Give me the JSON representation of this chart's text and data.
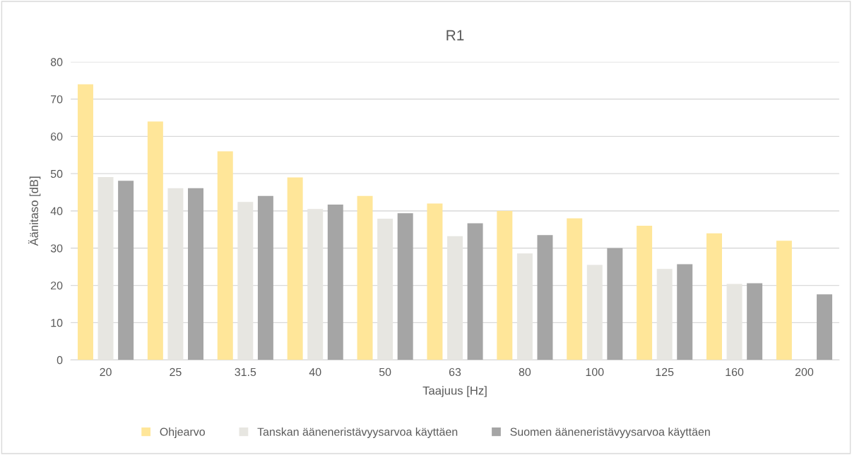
{
  "chart_data": {
    "type": "bar",
    "title": "R1",
    "xlabel": "Taajuus [Hz]",
    "ylabel": "Äänitaso [dB]",
    "categories": [
      "20",
      "25",
      "31.5",
      "40",
      "50",
      "63",
      "80",
      "100",
      "125",
      "160",
      "200"
    ],
    "series": [
      {
        "name": "Ohjearvo",
        "color": "#ffe699",
        "values": [
          74,
          64,
          56,
          49,
          44,
          42,
          40,
          38,
          36,
          34,
          32
        ]
      },
      {
        "name": "Tanskan ääneneristävyysarvoa käyttäen",
        "color": "#e7e6e1",
        "values": [
          49.1,
          46.1,
          42.4,
          40.5,
          37.9,
          33.2,
          28.6,
          25.5,
          24.4,
          20.4,
          null
        ]
      },
      {
        "name": "Suomen ääneneristävyysarvoa käyttäen",
        "color": "#a5a5a5",
        "values": [
          48.1,
          46.1,
          44.0,
          41.7,
          39.4,
          36.7,
          33.5,
          30,
          25.7,
          20.6,
          17.6
        ]
      }
    ],
    "ylim": [
      0,
      80
    ],
    "yticks": [
      0,
      10,
      20,
      30,
      40,
      50,
      60,
      70,
      80
    ],
    "grid": "y",
    "legend": "bottom"
  }
}
